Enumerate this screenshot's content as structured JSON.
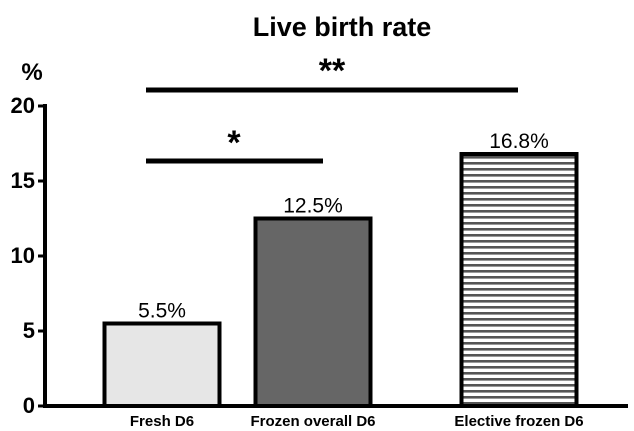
{
  "chart_data": {
    "type": "bar",
    "title": "Live birth rate",
    "y_unit": "%",
    "ylim": [
      0,
      20
    ],
    "yticks": [
      0,
      5,
      10,
      15,
      20
    ],
    "grid": false,
    "categories": [
      "Fresh D6",
      "Frozen overall D6",
      "Elective frozen D6"
    ],
    "values": [
      5.5,
      12.5,
      16.8
    ],
    "data_labels": [
      "5.5%",
      "12.5%",
      "16.8%"
    ],
    "bar_styles": [
      {
        "fill": "#e6e6e6",
        "pattern": "solid"
      },
      {
        "fill": "#666666",
        "pattern": "solid"
      },
      {
        "fill": "#ffffff",
        "pattern": "horizontal-stripes",
        "stripe_color": "#555555"
      }
    ],
    "significance": [
      {
        "from": 0,
        "to": 2,
        "label": "**"
      },
      {
        "from": 0,
        "to": 1,
        "label": "*"
      }
    ]
  }
}
